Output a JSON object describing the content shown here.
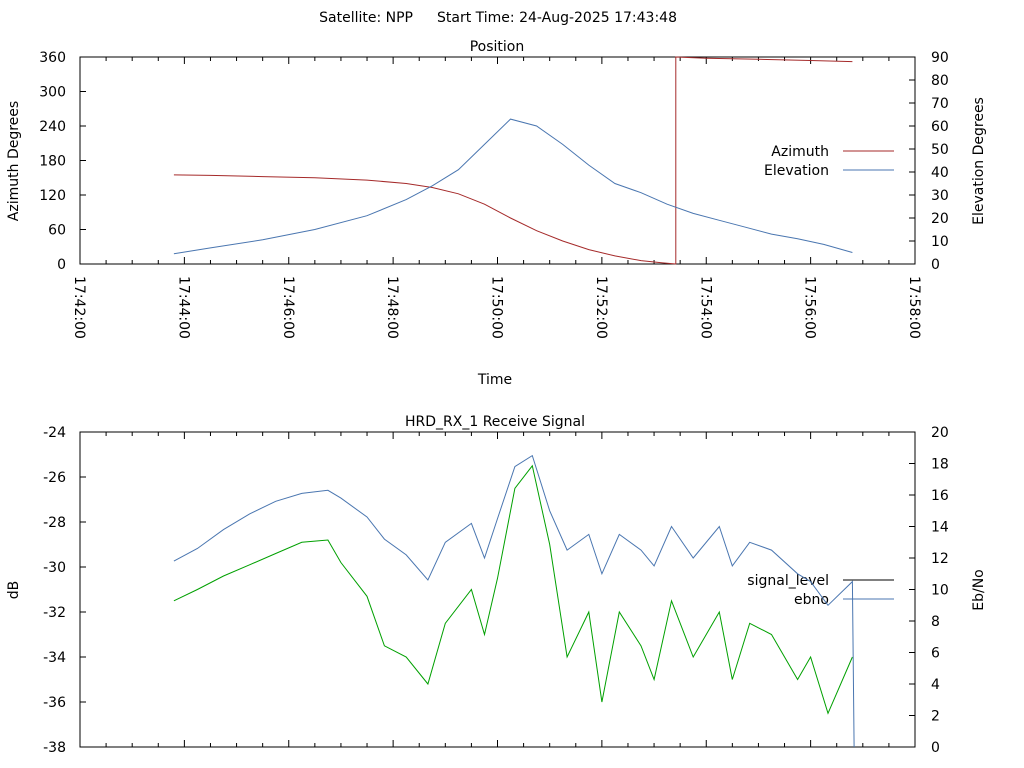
{
  "header": {
    "satellite_text": "Satellite: NPP",
    "start_time_text": "Start Time: 24-Aug-2025 17:43:48"
  },
  "chart_data": [
    {
      "type": "line",
      "title": "Position",
      "xlabel": "Time",
      "ylabel": "Azimuth Degrees",
      "y2label": "Elevation Degrees",
      "xlim": [
        "17:42:00",
        "17:58:00"
      ],
      "x_ticks": [
        "17:42:00",
        "17:44:00",
        "17:46:00",
        "17:48:00",
        "17:50:00",
        "17:52:00",
        "17:54:00",
        "17:56:00",
        "17:58:00"
      ],
      "ylim": [
        0,
        360
      ],
      "y_ticks": [
        "0",
        "60",
        "120",
        "180",
        "240",
        "300",
        "360"
      ],
      "y2lim": [
        0,
        90
      ],
      "y2_ticks": [
        "0",
        "10",
        "20",
        "30",
        "40",
        "50",
        "60",
        "70",
        "80",
        "90"
      ],
      "legend_position": "right",
      "series": [
        {
          "name": "Azimuth",
          "axis": "y",
          "color": "#a52a2a",
          "points": [
            [
              "17:43:48",
              155
            ],
            [
              "17:44:30",
              154
            ],
            [
              "17:45:30",
              152
            ],
            [
              "17:46:30",
              150
            ],
            [
              "17:47:30",
              146
            ],
            [
              "17:48:15",
              140
            ],
            [
              "17:48:45",
              133
            ],
            [
              "17:49:15",
              122
            ],
            [
              "17:49:45",
              104
            ],
            [
              "17:50:15",
              80
            ],
            [
              "17:50:45",
              58
            ],
            [
              "17:51:15",
              40
            ],
            [
              "17:51:45",
              25
            ],
            [
              "17:52:15",
              14
            ],
            [
              "17:52:45",
              6
            ],
            [
              "17:53:10",
              2
            ],
            [
              "17:53:25",
              0
            ],
            [
              "17:53:25",
              360
            ],
            [
              "17:54:00",
              358
            ],
            [
              "17:55:00",
              356
            ],
            [
              "17:56:00",
              354
            ],
            [
              "17:56:48",
              352
            ]
          ]
        },
        {
          "name": "Elevation",
          "axis": "y2",
          "color": "#4a76b0",
          "points": [
            [
              "17:43:48",
              4.5
            ],
            [
              "17:44:30",
              7
            ],
            [
              "17:45:30",
              10.5
            ],
            [
              "17:46:30",
              15
            ],
            [
              "17:47:30",
              21
            ],
            [
              "17:48:15",
              28
            ],
            [
              "17:48:45",
              34
            ],
            [
              "17:49:15",
              41
            ],
            [
              "17:49:45",
              52
            ],
            [
              "17:50:15",
              63
            ],
            [
              "17:50:45",
              60
            ],
            [
              "17:51:15",
              52
            ],
            [
              "17:51:45",
              43
            ],
            [
              "17:52:15",
              35
            ],
            [
              "17:52:45",
              31
            ],
            [
              "17:53:15",
              26
            ],
            [
              "17:53:45",
              22
            ],
            [
              "17:54:15",
              19
            ],
            [
              "17:54:45",
              16
            ],
            [
              "17:55:15",
              13
            ],
            [
              "17:55:45",
              11
            ],
            [
              "17:56:15",
              8.5
            ],
            [
              "17:56:48",
              5
            ]
          ]
        }
      ]
    },
    {
      "type": "line",
      "title": "HRD_RX_1 Receive Signal",
      "xlabel": "",
      "ylabel": "dB",
      "y2label": "Eb/No",
      "xlim": [
        "17:42:00",
        "17:58:00"
      ],
      "ylim": [
        -38,
        -24
      ],
      "y_ticks": [
        "-38",
        "-36",
        "-34",
        "-32",
        "-30",
        "-28",
        "-26",
        "-24"
      ],
      "y2lim": [
        0,
        20
      ],
      "y2_ticks": [
        "0",
        "2",
        "4",
        "6",
        "8",
        "10",
        "12",
        "14",
        "16",
        "18",
        "20"
      ],
      "legend_position": "right",
      "series": [
        {
          "name": "signal_level",
          "axis": "y",
          "color": "#00a000",
          "points": [
            [
              "17:43:48",
              -31.5
            ],
            [
              "17:44:15",
              -31.0
            ],
            [
              "17:44:45",
              -30.4
            ],
            [
              "17:45:15",
              -29.9
            ],
            [
              "17:45:45",
              -29.4
            ],
            [
              "17:46:15",
              -28.9
            ],
            [
              "17:46:45",
              -28.8
            ],
            [
              "17:47:00",
              -29.8
            ],
            [
              "17:47:30",
              -31.3
            ],
            [
              "17:47:50",
              -33.5
            ],
            [
              "17:48:15",
              -34.0
            ],
            [
              "17:48:40",
              -35.2
            ],
            [
              "17:49:00",
              -32.5
            ],
            [
              "17:49:30",
              -31.0
            ],
            [
              "17:49:45",
              -33.0
            ],
            [
              "17:50:00",
              -30.5
            ],
            [
              "17:50:20",
              -26.5
            ],
            [
              "17:50:40",
              -25.5
            ],
            [
              "17:51:00",
              -29.0
            ],
            [
              "17:51:20",
              -34.0
            ],
            [
              "17:51:45",
              -32.0
            ],
            [
              "17:52:00",
              -36.0
            ],
            [
              "17:52:20",
              -32.0
            ],
            [
              "17:52:45",
              -33.5
            ],
            [
              "17:53:00",
              -35.0
            ],
            [
              "17:53:20",
              -31.5
            ],
            [
              "17:53:45",
              -34.0
            ],
            [
              "17:54:15",
              -32.0
            ],
            [
              "17:54:30",
              -35.0
            ],
            [
              "17:54:50",
              -32.5
            ],
            [
              "17:55:15",
              -33.0
            ],
            [
              "17:55:45",
              -35.0
            ],
            [
              "17:56:00",
              -34.0
            ],
            [
              "17:56:20",
              -36.5
            ],
            [
              "17:56:48",
              -34.0
            ]
          ]
        },
        {
          "name": "ebno",
          "axis": "y2",
          "color": "#4a76b0",
          "points": [
            [
              "17:43:48",
              11.8
            ],
            [
              "17:44:15",
              12.6
            ],
            [
              "17:44:45",
              13.8
            ],
            [
              "17:45:15",
              14.8
            ],
            [
              "17:45:45",
              15.6
            ],
            [
              "17:46:15",
              16.1
            ],
            [
              "17:46:45",
              16.3
            ],
            [
              "17:47:00",
              15.8
            ],
            [
              "17:47:30",
              14.6
            ],
            [
              "17:47:50",
              13.2
            ],
            [
              "17:48:15",
              12.2
            ],
            [
              "17:48:40",
              10.6
            ],
            [
              "17:49:00",
              13.0
            ],
            [
              "17:49:30",
              14.2
            ],
            [
              "17:49:45",
              12.0
            ],
            [
              "17:50:00",
              14.5
            ],
            [
              "17:50:20",
              17.8
            ],
            [
              "17:50:40",
              18.5
            ],
            [
              "17:51:00",
              15.0
            ],
            [
              "17:51:20",
              12.5
            ],
            [
              "17:51:45",
              13.5
            ],
            [
              "17:52:00",
              11.0
            ],
            [
              "17:52:20",
              13.5
            ],
            [
              "17:52:45",
              12.5
            ],
            [
              "17:53:00",
              11.5
            ],
            [
              "17:53:20",
              14.0
            ],
            [
              "17:53:45",
              12.0
            ],
            [
              "17:54:15",
              14.0
            ],
            [
              "17:54:30",
              11.5
            ],
            [
              "17:54:50",
              13.0
            ],
            [
              "17:55:15",
              12.5
            ],
            [
              "17:55:45",
              11.0
            ],
            [
              "17:56:00",
              10.5
            ],
            [
              "17:56:20",
              9.0
            ],
            [
              "17:56:48",
              10.5
            ],
            [
              "17:56:50",
              0
            ]
          ]
        }
      ]
    }
  ]
}
